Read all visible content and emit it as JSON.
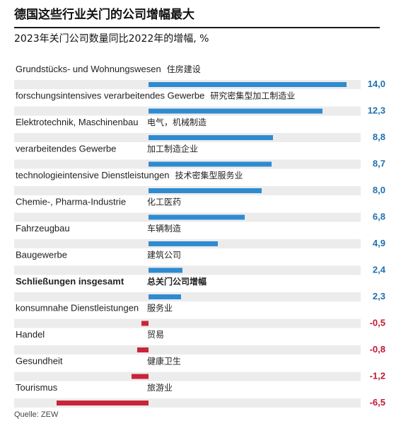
{
  "title": "德国这些行业关门的公司增幅最大",
  "subtitle": "2023年关门公司数量同比2022年的增幅, %",
  "source": "Quelle: ZEW",
  "colors": {
    "positive": "#2f8bd0",
    "negative": "#c8243a",
    "positive_value": "#1f6fb0",
    "negative_value": "#c0192e",
    "band": "#ececec"
  },
  "chart_data": {
    "type": "bar",
    "orientation": "horizontal",
    "title": "德国这些行业关门的公司增幅最大",
    "subtitle": "2023年关门公司数量同比2022年的增幅, %",
    "categories_de": [
      "Grundstücks- und Wohnungswesen",
      "forschungsintensives verarbeitendes Gewerbe",
      "Elektrotechnik, Maschinenbau",
      "verarbeitendes Gewerbe",
      "technologieintensive Dienstleistungen",
      "Chemie-, Pharma-Industrie",
      "Fahrzeugbau",
      "Baugewerbe",
      "Schließungen insgesamt",
      "konsumnahe Dienstleistungen",
      "Handel",
      "Gesundheit",
      "Tourismus"
    ],
    "categories_zh": [
      "住房建设",
      "研究密集型加工制造业",
      "电气，机械制造",
      "加工制造企业",
      "技术密集型服务业",
      "化工医药",
      "车辆制造",
      "建筑公司",
      "总关门公司增幅",
      "服务业",
      "贸易",
      "健康卫生",
      "旅游业"
    ],
    "values": [
      14.0,
      12.3,
      8.8,
      8.7,
      8.0,
      6.8,
      4.9,
      2.4,
      2.3,
      -0.5,
      -0.8,
      -1.2,
      -6.5
    ],
    "value_labels": [
      "14,0",
      "12,3",
      "8,8",
      "8,7",
      "8,0",
      "6,8",
      "4,9",
      "2,4",
      "2,3",
      "-0,5",
      "-0,8",
      "-1,2",
      "-6,5"
    ],
    "highlight_index": 8,
    "unit": "%",
    "grid": false,
    "legend": "none"
  }
}
